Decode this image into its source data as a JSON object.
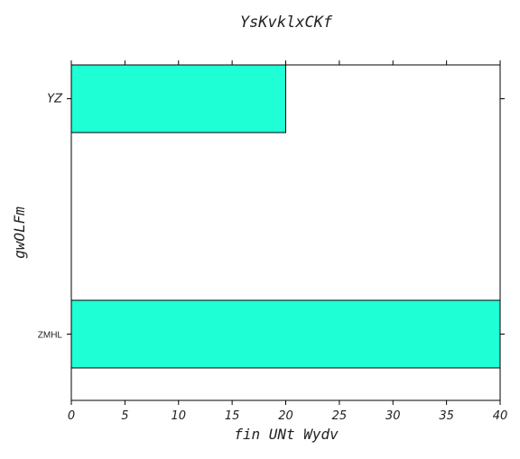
{
  "chart_data": {
    "type": "bar",
    "orientation": "horizontal",
    "title": "YsKvklxCKf",
    "xlabel": "fin UNt Wydv",
    "ylabel": "gwOLFm",
    "categories": [
      "YZ",
      "ZMHL"
    ],
    "values": [
      20,
      40
    ],
    "xlim": [
      0,
      40
    ],
    "xticks": [
      "0",
      "5",
      "10",
      "15",
      "20",
      "25",
      "30",
      "35",
      "40"
    ],
    "grid": false,
    "legend": "none",
    "bar_color": "#1EFFD5",
    "edge_color": "#000000"
  }
}
